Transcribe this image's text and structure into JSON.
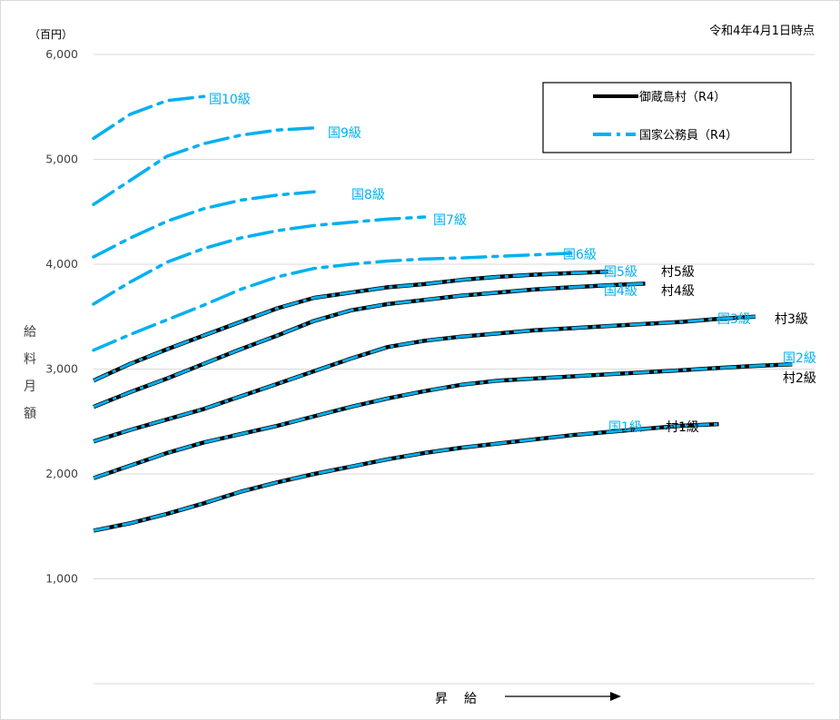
{
  "chart_data": {
    "type": "line",
    "unit_label": "（百円）",
    "date_note": "令和4年4月1日時点",
    "ylabel_chars": [
      "給",
      "料",
      "月",
      "額"
    ],
    "xlabel": "昇　給",
    "ylim": [
      0,
      6000
    ],
    "yticks": [
      "1,000",
      "2,000",
      "3,000",
      "4,000",
      "5,000",
      "6,000"
    ],
    "ytick_values": [
      1000,
      2000,
      3000,
      4000,
      5000,
      6000
    ],
    "grid": true,
    "legend_position": "top-right",
    "legend": [
      {
        "label": "御蔵島村（R4）",
        "style": "solid",
        "color": "#000000"
      },
      {
        "label": "国家公務員（R4）",
        "style": "dashed",
        "color": "#00b0f0"
      }
    ],
    "colors": {
      "kuni": "#00b0f0",
      "mura": "#000000",
      "grid": "#d9d9d9"
    },
    "series": [
      {
        "kuni_label": "国1級",
        "mura_label": "村1級",
        "mura": true,
        "values": [
          1460,
          1530,
          1620,
          1720,
          1830,
          1920,
          2000,
          2070,
          2140,
          2200,
          2250,
          2290,
          2330,
          2370,
          2400,
          2430,
          2460,
          2475
        ]
      },
      {
        "kuni_label": "国2級",
        "mura_label": "村2級",
        "mura": true,
        "values": [
          1960,
          2080,
          2200,
          2300,
          2380,
          2460,
          2550,
          2640,
          2720,
          2790,
          2850,
          2890,
          2910,
          2930,
          2950,
          2970,
          2990,
          3010,
          3030,
          3045
        ]
      },
      {
        "kuni_label": "国3級",
        "mura_label": "村3級",
        "mura": true,
        "values": [
          2310,
          2420,
          2520,
          2620,
          2740,
          2860,
          2980,
          3100,
          3210,
          3270,
          3310,
          3340,
          3370,
          3390,
          3410,
          3430,
          3450,
          3480,
          3500
        ]
      },
      {
        "kuni_label": "国4級",
        "mura_label": "村4級",
        "mura": true,
        "values": [
          2640,
          2780,
          2910,
          3050,
          3190,
          3320,
          3460,
          3560,
          3620,
          3660,
          3700,
          3730,
          3760,
          3780,
          3800,
          3815
        ]
      },
      {
        "kuni_label": "国5級",
        "mura_label": "村5級",
        "mura": true,
        "values": [
          2890,
          3050,
          3190,
          3320,
          3450,
          3580,
          3680,
          3730,
          3780,
          3810,
          3850,
          3880,
          3900,
          3915,
          3930
        ]
      },
      {
        "kuni_label": "国6級",
        "mura": false,
        "values": [
          3180,
          3330,
          3470,
          3610,
          3760,
          3880,
          3960,
          4000,
          4030,
          4050,
          4060,
          4075,
          4090,
          4105
        ]
      },
      {
        "kuni_label": "国7級",
        "mura": false,
        "values": [
          3620,
          3830,
          4020,
          4150,
          4250,
          4320,
          4370,
          4400,
          4430,
          4450
        ]
      },
      {
        "kuni_label": "国8級",
        "mura": false,
        "values": [
          4070,
          4250,
          4410,
          4530,
          4610,
          4660,
          4690
        ]
      },
      {
        "kuni_label": "国9級",
        "mura": false,
        "values": [
          4570,
          4800,
          5030,
          5150,
          5230,
          5280,
          5300
        ]
      },
      {
        "kuni_label": "国10級",
        "mura": false,
        "values": [
          5200,
          5430,
          5560,
          5600
        ]
      }
    ]
  }
}
